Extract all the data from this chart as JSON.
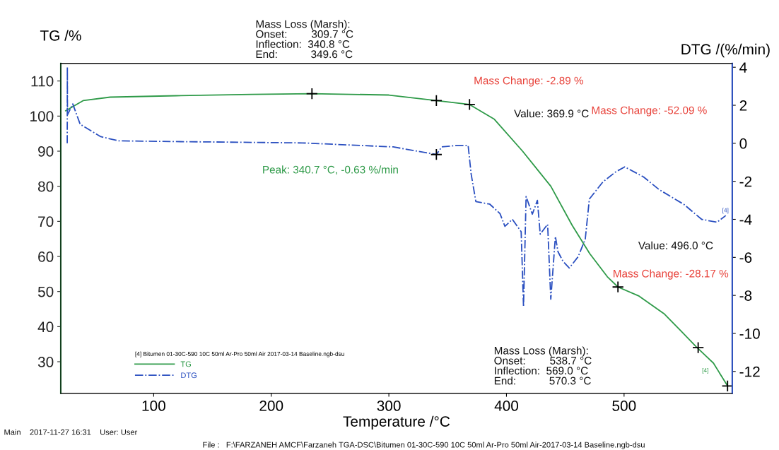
{
  "chart_data": {
    "type": "line",
    "xlabel": "Temperature /°C",
    "ylabel": "TG /%",
    "y2label": "DTG /(%/min)",
    "legend_title": "[4] Bitumen 01-30C-590 10C 50ml Ar-Pro 50ml Air 2017-03-14 Baseline.ngb-dsu",
    "xlim": [
      21,
      592
    ],
    "xticks": [
      100,
      200,
      300,
      400,
      500
    ],
    "ylim": [
      21,
      115
    ],
    "yticks": [
      30,
      40,
      50,
      60,
      70,
      80,
      90,
      100,
      110
    ],
    "y2lim": [
      -13.15,
      4.2
    ],
    "y2ticks": [
      -12,
      -10,
      -8,
      -6,
      -4,
      -2,
      0,
      2,
      4
    ],
    "grid": false,
    "legend": "bottom left",
    "series": [
      {
        "name": "TG",
        "color": "#2e9a48",
        "line_style": "solid",
        "x": [
          25.2,
          40,
          63,
          119,
          183.5,
          234.6,
          300,
          340.4,
          368.6,
          389.7,
          413.7,
          437.7,
          455.8,
          470.8,
          485.8,
          494.8,
          512.8,
          533.9,
          548.9,
          561.5,
          576,
          588
        ],
        "values": [
          101.5,
          104.4,
          105.4,
          105.8,
          106.2,
          106.4,
          106.0,
          104.4,
          103.3,
          99.1,
          90,
          80,
          68.9,
          60.8,
          54.2,
          51.3,
          48.7,
          43.7,
          38.6,
          34.2,
          29.6,
          23.1
        ]
      },
      {
        "name": "DTG",
        "color": "#2a4fc0",
        "line_style": "dashdot",
        "axis": "y2",
        "x": [
          26.5,
          26.6,
          26.7,
          31.2,
          37.5,
          55,
          70,
          119,
          226.6,
          303.7,
          340.4,
          345,
          357.8,
          367.4,
          370,
          374,
          385.8,
          394.5,
          398.7,
          405,
          412.5,
          414.5,
          416.7,
          422,
          426.3,
          428.7,
          435,
          437.7,
          441.6,
          443.8,
          448,
          453.4,
          461,
          467,
          470.5,
          482,
          493,
          500.6,
          516.6,
          529.7,
          551,
          566,
          579,
          586.5
        ],
        "values": [
          0.0,
          4.0,
          1.5,
          2.07,
          1.0,
          0.35,
          0.13,
          0.09,
          0.02,
          -0.19,
          -0.59,
          -0.19,
          -0.11,
          -0.11,
          -1.63,
          -3.07,
          -3.2,
          -3.7,
          -4.37,
          -4.0,
          -4.65,
          -8.6,
          -2.8,
          -3.73,
          -3.0,
          -4.78,
          -4.26,
          -8.2,
          -4.9,
          -5.7,
          -6.2,
          -6.56,
          -5.96,
          -5.04,
          -2.93,
          -2.03,
          -1.5,
          -1.24,
          -1.77,
          -2.43,
          -3.22,
          -4.0,
          -4.15,
          -3.8
        ]
      },
      {
        "type": "scatter",
        "color": "#000000",
        "marker": "cross",
        "x": [
          234.6,
          340.4,
          368.6,
          494.8,
          563,
          588
        ],
        "values": [
          106.4,
          104.4,
          103.3,
          51.3,
          34.0,
          23.1
        ]
      },
      {
        "type": "scatter",
        "color": "#000000",
        "marker": "cross",
        "axis": "y2",
        "x": [
          340.4
        ],
        "values": [
          -0.59
        ]
      }
    ],
    "annotations": [
      "Mass Loss (Marsh):\nOnset:        309.7 °C\nInflection:  340.8 °C\nEnd:           349.6 °C",
      "Mass Change: -2.89 %",
      "Value: 369.9 °C",
      "Mass Change: -52.09 %",
      "Peak: 340.7 °C, -0.63 %/min",
      "Value: 496.0 °C",
      "Mass Change: -28.17 %",
      "Mass Loss (Marsh):\nOnset:        538.7 °C\nInflection:  569.0 °C\nEnd:           570.3 °C",
      "[4]",
      "[4]",
      "Main    2017-11-27 16:31    User: User",
      "File :   F:\\FARZANEH AMCF\\Farzaneh TGA-DSC\\Bitumen 01-30C-590 10C 50ml Ar-Pro 50ml Air-2017-03-14 Baseline.ngb-dsu"
    ]
  }
}
